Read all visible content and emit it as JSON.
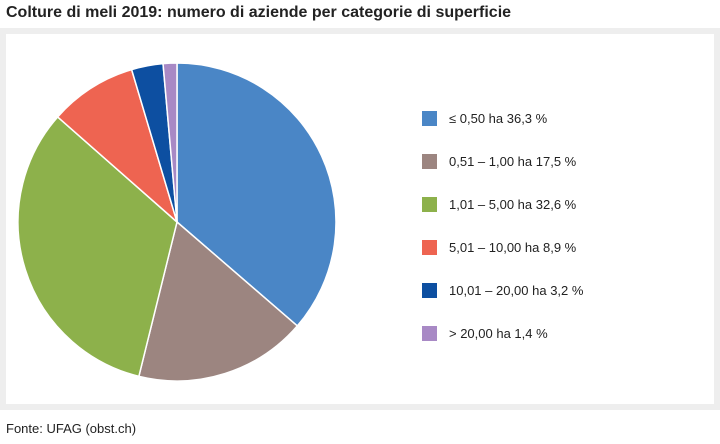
{
  "chart_data": {
    "type": "pie",
    "title": "Colture di meli 2019: numero di aziende per categorie di superficie",
    "source": "Fonte: UFAG (obst.ch)",
    "legend_position": "right",
    "slices": [
      {
        "label": "≤ 0,50 ha 36,3 %",
        "value": 36.3,
        "color": "#4a86c6"
      },
      {
        "label": "0,51 – 1,00 ha 17,5 %",
        "value": 17.5,
        "color": "#9c8580"
      },
      {
        "label": "1,01 – 5,00 ha 32,6 %",
        "value": 32.6,
        "color": "#8db14b"
      },
      {
        "label": "5,01 – 10,00 ha 8,9 %",
        "value": 8.9,
        "color": "#ee6451"
      },
      {
        "label": "10,01 – 20,00 ha 3,2 %",
        "value": 3.2,
        "color": "#0d4fa1"
      },
      {
        "label": "> 20,00 ha 1,4 %",
        "value": 1.4,
        "color": "#a889c5"
      }
    ]
  }
}
